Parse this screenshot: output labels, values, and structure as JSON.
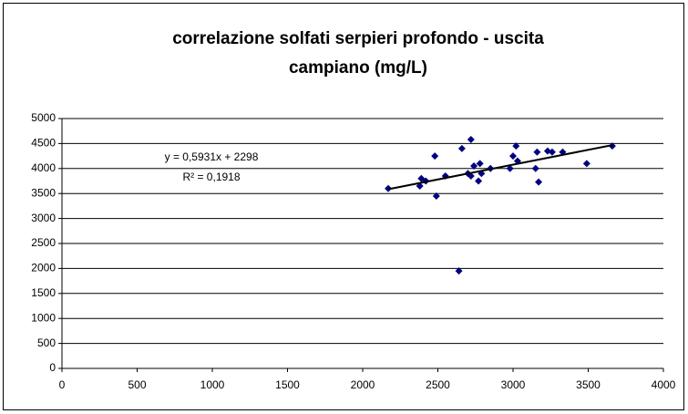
{
  "chart_data": {
    "type": "scatter",
    "title": [
      "correlazione solfati serpieri profondo - uscita",
      "campiano (mg/L)"
    ],
    "series": [
      {
        "color": "#000080",
        "x": [
          2170,
          2380,
          2390,
          2420,
          2480,
          2490,
          2550,
          2640,
          2660,
          2700,
          2720,
          2720,
          2740,
          2770,
          2780,
          2790,
          2850,
          2980,
          3000,
          3020,
          3030,
          3150,
          3160,
          3170,
          3230,
          3260,
          3330,
          3490,
          3660
        ],
        "values": [
          3600,
          3650,
          3800,
          3750,
          4250,
          3450,
          3850,
          1950,
          4400,
          3900,
          4580,
          3850,
          4050,
          3750,
          4100,
          3900,
          4000,
          4000,
          4250,
          4450,
          4150,
          4000,
          4330,
          3730,
          4350,
          4330,
          4330,
          4100,
          4450
        ]
      }
    ],
    "trendline": {
      "slope": 0.5931,
      "intercept": 2298,
      "color": "#000000",
      "equation": "y = 0,5931x + 2298",
      "r2": "R² = 0,1918"
    },
    "xlim": [
      0,
      4000
    ],
    "xticks": [
      0,
      500,
      1000,
      1500,
      2000,
      2500,
      3000,
      3500,
      4000
    ],
    "ylim": [
      0,
      5000
    ],
    "yticks": [
      0,
      500,
      1000,
      1500,
      2000,
      2500,
      3000,
      3500,
      4000,
      4500,
      5000
    ],
    "grid": true
  }
}
